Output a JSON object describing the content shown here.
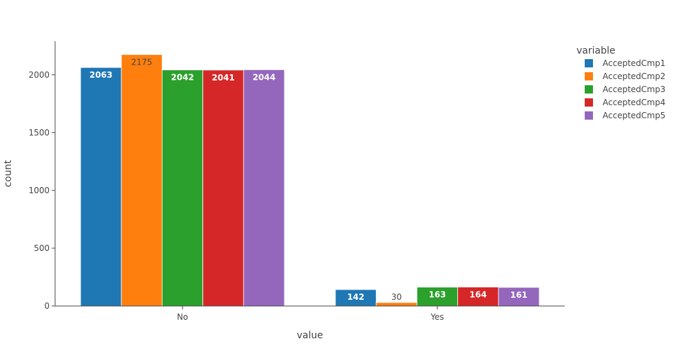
{
  "chart_data": {
    "type": "bar",
    "barmode": "group",
    "categories": [
      "No",
      "Yes"
    ],
    "series": [
      {
        "name": "AcceptedCmp1",
        "values": [
          2063,
          142
        ],
        "color": "#1f77b4"
      },
      {
        "name": "AcceptedCmp2",
        "values": [
          2175,
          30
        ],
        "color": "#ff7f0e"
      },
      {
        "name": "AcceptedCmp3",
        "values": [
          2042,
          163
        ],
        "color": "#2ca02c"
      },
      {
        "name": "AcceptedCmp4",
        "values": [
          2041,
          164
        ],
        "color": "#d62728"
      },
      {
        "name": "AcceptedCmp5",
        "values": [
          2044,
          161
        ],
        "color": "#9467bd"
      }
    ],
    "xlabel": "value",
    "ylabel": "count",
    "ylim": [
      0,
      2290
    ],
    "yticks": [
      0,
      500,
      1000,
      1500,
      2000
    ],
    "legend_title": "variable",
    "legend_position": "top-right",
    "grid": false
  }
}
